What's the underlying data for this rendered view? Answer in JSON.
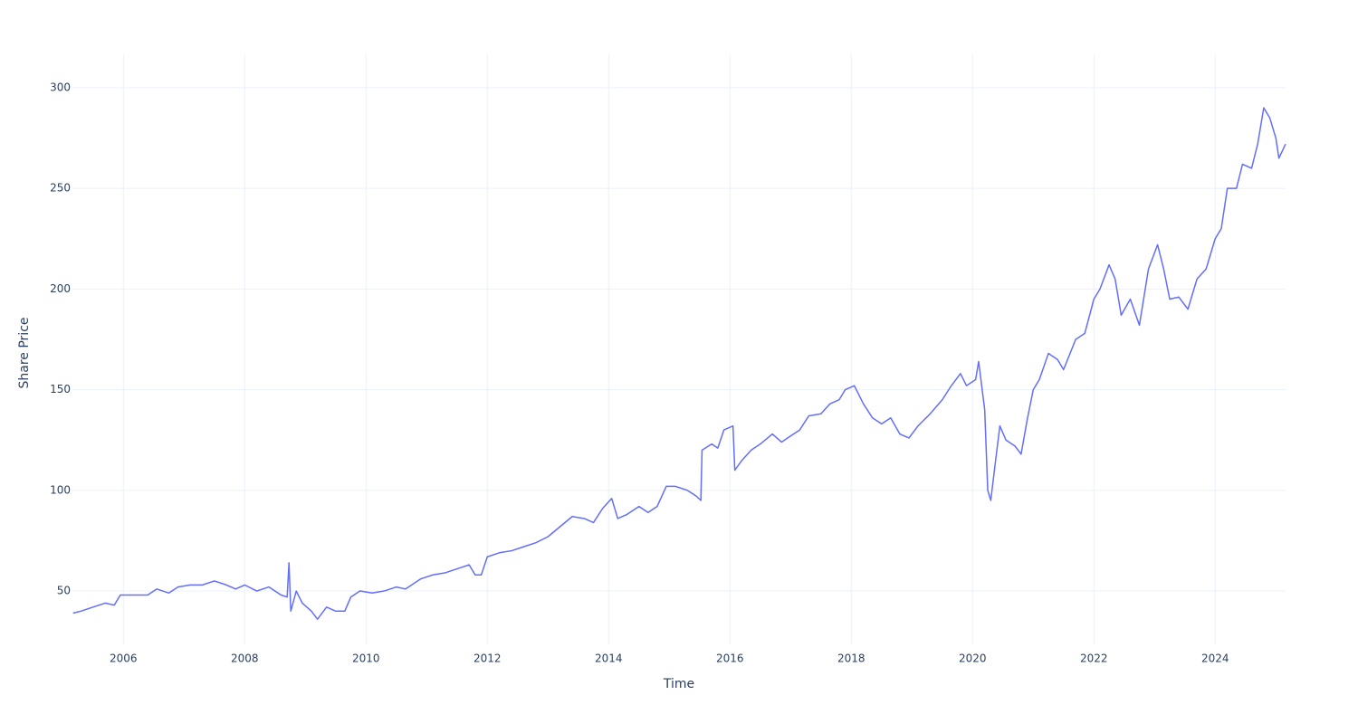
{
  "chart_data": {
    "type": "line",
    "xlabel": "Time",
    "ylabel": "Share Price",
    "color": "#636efa",
    "grid": true,
    "xlim": [
      2005.16,
      2025.16
    ],
    "ylim": [
      23.5,
      316.6
    ],
    "xticks": [
      2006,
      2008,
      2010,
      2012,
      2014,
      2016,
      2018,
      2020,
      2022,
      2024
    ],
    "yticks": [
      50,
      100,
      150,
      200,
      250,
      300
    ],
    "x": [
      2005.17,
      2005.3,
      2005.5,
      2005.7,
      2005.85,
      2005.95,
      2006.2,
      2006.4,
      2006.55,
      2006.75,
      2006.9,
      2007.1,
      2007.3,
      2007.5,
      2007.7,
      2007.85,
      2008.0,
      2008.2,
      2008.4,
      2008.6,
      2008.7,
      2008.73,
      2008.76,
      2008.85,
      2008.95,
      2009.1,
      2009.2,
      2009.35,
      2009.5,
      2009.65,
      2009.75,
      2009.9,
      2010.1,
      2010.3,
      2010.5,
      2010.65,
      2010.9,
      2011.1,
      2011.3,
      2011.5,
      2011.7,
      2011.8,
      2011.9,
      2012.0,
      2012.2,
      2012.4,
      2012.6,
      2012.8,
      2013.0,
      2013.2,
      2013.4,
      2013.6,
      2013.75,
      2013.9,
      2014.05,
      2014.15,
      2014.3,
      2014.5,
      2014.65,
      2014.8,
      2014.95,
      2015.1,
      2015.3,
      2015.45,
      2015.52,
      2015.54,
      2015.7,
      2015.8,
      2015.9,
      2016.05,
      2016.08,
      2016.2,
      2016.35,
      2016.5,
      2016.7,
      2016.85,
      2017.0,
      2017.15,
      2017.3,
      2017.5,
      2017.65,
      2017.8,
      2017.9,
      2018.05,
      2018.2,
      2018.35,
      2018.5,
      2018.65,
      2018.8,
      2018.95,
      2019.1,
      2019.3,
      2019.5,
      2019.65,
      2019.8,
      2019.9,
      2020.05,
      2020.1,
      2020.2,
      2020.25,
      2020.3,
      2020.38,
      2020.45,
      2020.55,
      2020.7,
      2020.8,
      2020.9,
      2021.0,
      2021.1,
      2021.25,
      2021.4,
      2021.5,
      2021.7,
      2021.85,
      2022.0,
      2022.1,
      2022.25,
      2022.35,
      2022.45,
      2022.6,
      2022.75,
      2022.9,
      2023.05,
      2023.15,
      2023.25,
      2023.4,
      2023.55,
      2023.7,
      2023.85,
      2024.0,
      2024.1,
      2024.2,
      2024.35,
      2024.45,
      2024.6,
      2024.7,
      2024.8,
      2024.9,
      2025.0,
      2025.05,
      2025.16
    ],
    "values": [
      39,
      40,
      42,
      44,
      43,
      48,
      48,
      48,
      51,
      49,
      52,
      53,
      53,
      55,
      53,
      51,
      53,
      50,
      52,
      48,
      47,
      64,
      40,
      50,
      44,
      40,
      36,
      42,
      40,
      40,
      47,
      50,
      49,
      50,
      52,
      51,
      56,
      58,
      59,
      61,
      63,
      58,
      58,
      67,
      69,
      70,
      72,
      74,
      77,
      82,
      87,
      86,
      84,
      91,
      96,
      86,
      88,
      92,
      89,
      92,
      102,
      102,
      100,
      97,
      95,
      120,
      123,
      121,
      130,
      132,
      110,
      115,
      120,
      123,
      128,
      124,
      127,
      130,
      137,
      138,
      143,
      145,
      150,
      152,
      143,
      136,
      133,
      136,
      128,
      126,
      132,
      138,
      145,
      152,
      158,
      152,
      155,
      164,
      140,
      100,
      95,
      115,
      132,
      125,
      122,
      118,
      135,
      150,
      155,
      168,
      165,
      160,
      175,
      178,
      195,
      200,
      212,
      205,
      187,
      195,
      182,
      210,
      222,
      210,
      195,
      196,
      190,
      205,
      210,
      225,
      230,
      250,
      250,
      262,
      260,
      272,
      290,
      285,
      275,
      265,
      272
    ]
  }
}
